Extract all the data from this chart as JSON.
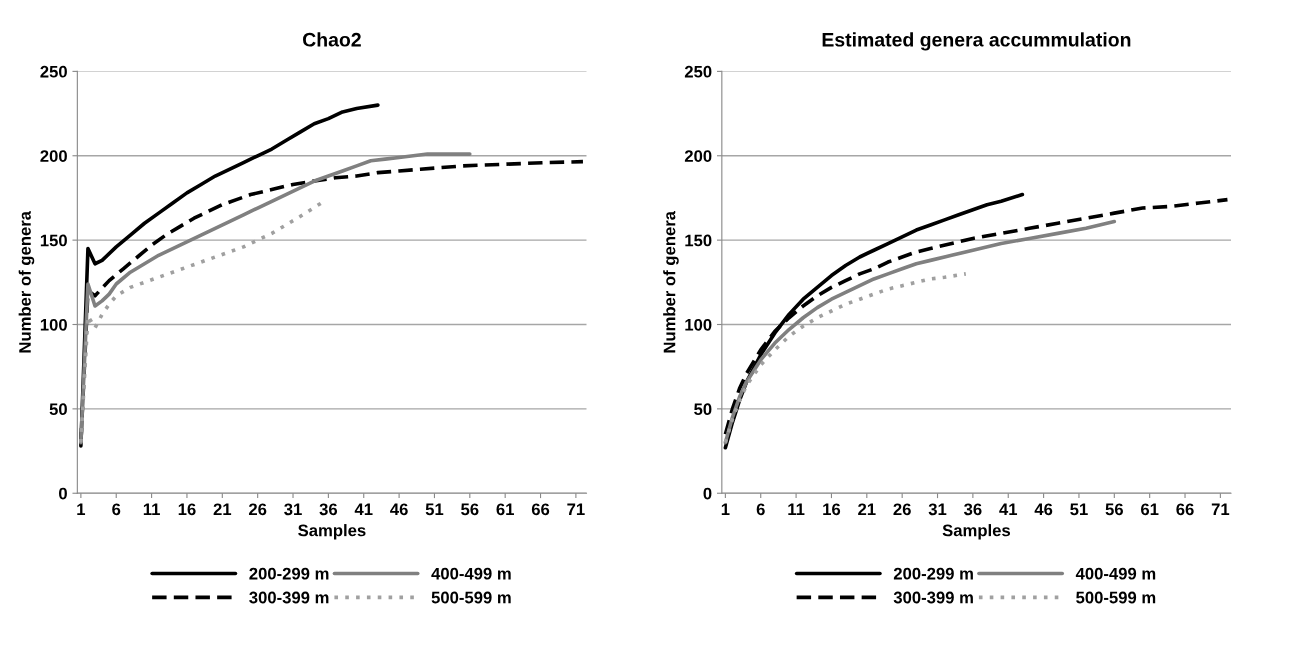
{
  "chart_data": [
    {
      "type": "line",
      "title": "Chao2",
      "xlabel": "Samples",
      "ylabel": "Number of genera",
      "xlim": [
        0.5,
        72.5
      ],
      "xticks": [
        1,
        6,
        11,
        16,
        21,
        26,
        31,
        36,
        41,
        46,
        51,
        56,
        61,
        66,
        71
      ],
      "ylim": [
        0,
        250
      ],
      "yticks": [
        0,
        50,
        100,
        150,
        200,
        250
      ],
      "grid": "y",
      "legend": "bottom",
      "marker": "none",
      "series": [
        {
          "name": "200-299 m",
          "color": "#000000",
          "line_style": "solid",
          "x": [
            1,
            2,
            3,
            4,
            6,
            8,
            10,
            12,
            14,
            16,
            18,
            20,
            22,
            24,
            26,
            28,
            30,
            32,
            34,
            36,
            38,
            40,
            43
          ],
          "values": [
            28,
            145,
            136,
            138,
            146,
            153,
            160,
            166,
            172,
            178,
            183,
            188,
            192,
            196,
            200,
            204,
            209,
            214,
            219,
            222,
            226,
            228,
            230
          ]
        },
        {
          "name": "300-399 m",
          "color": "#000000",
          "line_style": "dashed",
          "x": [
            1,
            2,
            3,
            5,
            7,
            9,
            11,
            13,
            15,
            17,
            19,
            21,
            23,
            25,
            28,
            31,
            34,
            37,
            40,
            43,
            46,
            49,
            52,
            55,
            58,
            61,
            64,
            67,
            72
          ],
          "values": [
            30,
            120,
            117,
            126,
            133,
            140,
            147,
            153,
            158,
            163,
            167,
            171,
            174,
            177,
            180,
            183,
            185,
            187,
            188,
            190,
            191,
            192,
            193,
            194,
            194.5,
            195,
            195.5,
            196,
            196.5
          ]
        },
        {
          "name": "400-499 m",
          "color": "#808080",
          "line_style": "solid",
          "x": [
            1,
            2,
            3,
            4,
            5,
            6,
            8,
            10,
            12,
            14,
            16,
            18,
            20,
            22,
            24,
            26,
            28,
            30,
            32,
            34,
            36,
            38,
            40,
            42,
            44,
            46,
            48,
            50,
            52,
            56
          ],
          "values": [
            30,
            124,
            111,
            114,
            118,
            124,
            131,
            136,
            141,
            145,
            149,
            153,
            157,
            161,
            165,
            169,
            173,
            177,
            181,
            185,
            188,
            191,
            194,
            197,
            198,
            199,
            200,
            201,
            201,
            201
          ]
        },
        {
          "name": "500-599 m",
          "color": "#a0a0a0",
          "line_style": "dotted",
          "x": [
            1,
            2,
            3,
            4,
            5,
            6,
            8,
            10,
            12,
            14,
            16,
            18,
            20,
            22,
            24,
            26,
            28,
            30,
            32,
            35
          ],
          "values": [
            30,
            105,
            98,
            106,
            112,
            117,
            122,
            125,
            128,
            131,
            134,
            137,
            140,
            143,
            146,
            150,
            154,
            159,
            164,
            172
          ]
        }
      ]
    },
    {
      "type": "line",
      "title": "Estimated genera accummulation",
      "xlabel": "Samples",
      "ylabel": "Number of genera",
      "xlim": [
        0.5,
        72.5
      ],
      "xticks": [
        1,
        6,
        11,
        16,
        21,
        26,
        31,
        36,
        41,
        46,
        51,
        56,
        61,
        66,
        71
      ],
      "ylim": [
        0,
        250
      ],
      "yticks": [
        0,
        50,
        100,
        150,
        200,
        250
      ],
      "grid": "y",
      "legend": "bottom",
      "marker": "none",
      "series": [
        {
          "name": "200-299 m",
          "color": "#000000",
          "line_style": "solid",
          "x": [
            1,
            2,
            3,
            4,
            6,
            8,
            10,
            12,
            14,
            16,
            18,
            20,
            22,
            24,
            26,
            28,
            30,
            32,
            34,
            36,
            38,
            40,
            43
          ],
          "values": [
            27,
            42,
            55,
            66,
            82,
            95,
            106,
            115,
            122,
            129,
            135,
            140,
            144,
            148,
            152,
            156,
            159,
            162,
            165,
            168,
            171,
            173,
            177
          ]
        },
        {
          "name": "300-399 m",
          "color": "#000000",
          "line_style": "dashed",
          "x": [
            1,
            2,
            3,
            4,
            6,
            8,
            10,
            12,
            14,
            16,
            18,
            20,
            22,
            24,
            26,
            28,
            30,
            33,
            36,
            40,
            44,
            48,
            52,
            56,
            60,
            64,
            68,
            72
          ],
          "values": [
            35,
            50,
            62,
            71,
            85,
            96,
            104,
            111,
            117,
            122,
            126,
            130,
            133,
            137,
            140,
            143,
            145,
            148,
            151,
            154,
            157,
            160,
            163,
            166,
            169,
            170,
            172,
            174
          ]
        },
        {
          "name": "400-499 m",
          "color": "#808080",
          "line_style": "solid",
          "x": [
            1,
            2,
            3,
            4,
            6,
            8,
            10,
            12,
            14,
            16,
            18,
            20,
            22,
            24,
            26,
            28,
            30,
            33,
            36,
            40,
            44,
            48,
            52,
            56
          ],
          "values": [
            30,
            45,
            57,
            66,
            79,
            89,
            97,
            104,
            110,
            115,
            119,
            123,
            127,
            130,
            133,
            136,
            138,
            141,
            144,
            148,
            151,
            154,
            157,
            161
          ]
        },
        {
          "name": "500-599 m",
          "color": "#a0a0a0",
          "line_style": "dotted",
          "x": [
            1,
            2,
            3,
            4,
            6,
            8,
            10,
            12,
            14,
            16,
            18,
            20,
            22,
            24,
            26,
            28,
            30,
            32,
            35
          ],
          "values": [
            30,
            44,
            55,
            64,
            76,
            85,
            93,
            99,
            104,
            108,
            112,
            115,
            118,
            121,
            123,
            125,
            127,
            128,
            130
          ]
        }
      ]
    }
  ]
}
